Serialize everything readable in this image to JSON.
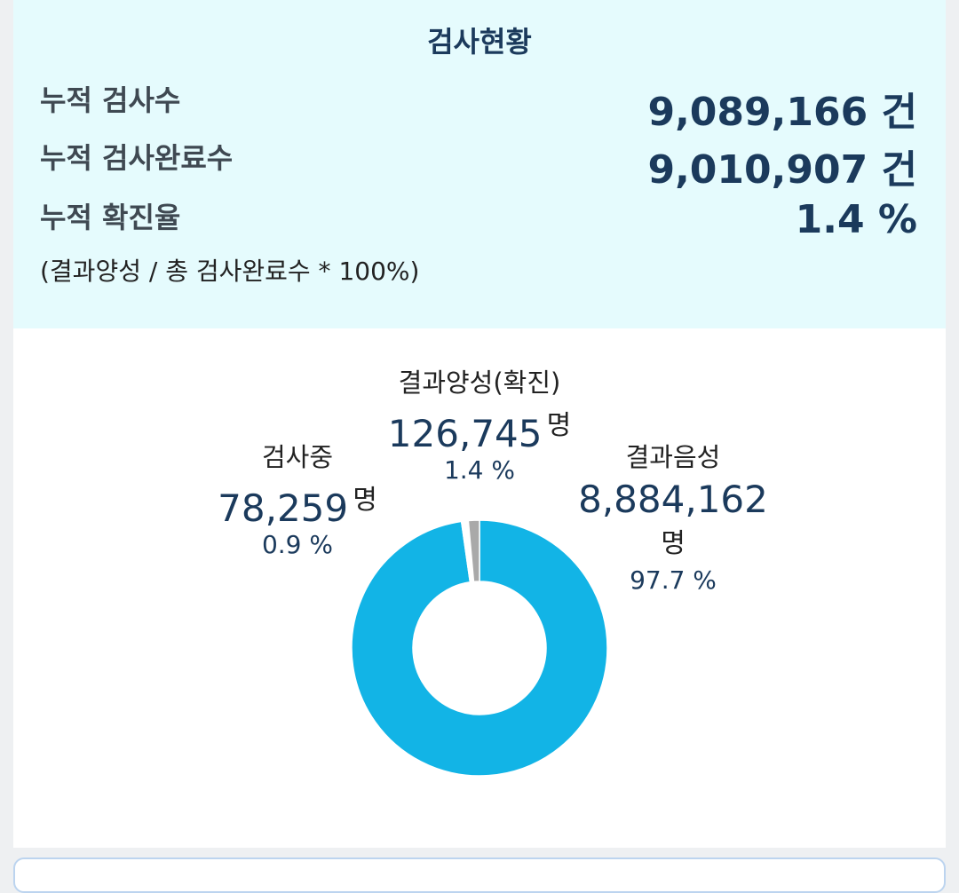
{
  "summary": {
    "title": "검사현황",
    "stats": [
      {
        "label": "누적 검사수",
        "value": "9,089,166 건"
      },
      {
        "label": "누적 검사완료수",
        "value": "9,010,907 건"
      },
      {
        "label": "누적 확진율",
        "value": "1.4 %"
      }
    ],
    "note": "(결과양성 / 총 검사완료수 * 100%)"
  },
  "chart_data": {
    "type": "pie",
    "donut": true,
    "categories": [
      "결과음성",
      "검사중",
      "결과양성(확진)"
    ],
    "values": [
      8884162,
      78259,
      126745
    ],
    "percent_labels": [
      "97.7 %",
      "0.9 %",
      "1.4 %"
    ],
    "unit": "명",
    "colors": [
      "#12b4e6",
      "#ffffff",
      "#a9a9a9"
    ],
    "labels": {
      "positive": {
        "name": "결과양성(확진)",
        "count": "126,745",
        "unit": "명",
        "pct": "1.4 %"
      },
      "testing": {
        "name": "검사중",
        "count": "78,259",
        "unit": "명",
        "pct": "0.9 %"
      },
      "negative": {
        "name": "결과음성",
        "count": "8,884,162",
        "unit": "명",
        "pct": "97.7 %"
      }
    }
  }
}
